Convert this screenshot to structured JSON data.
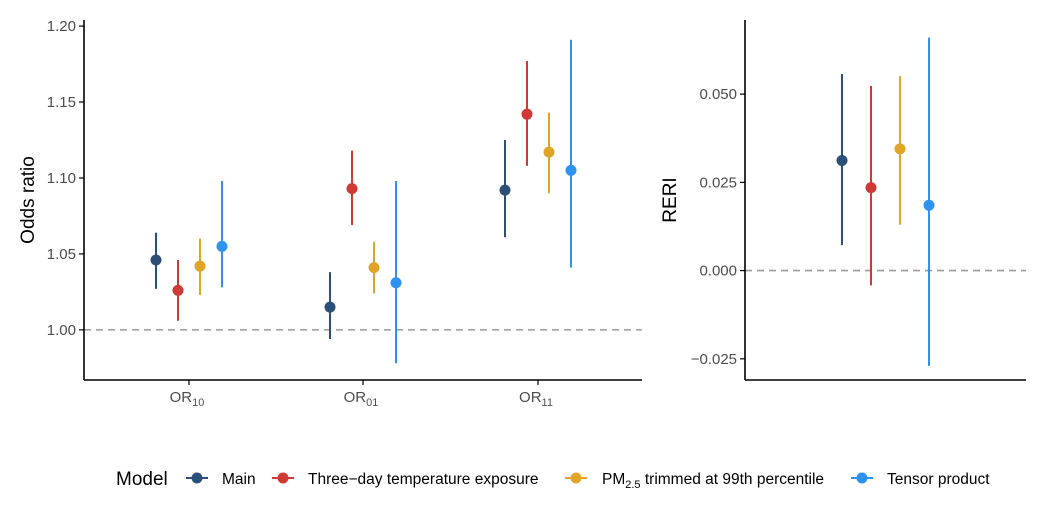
{
  "chart_data": [
    {
      "type": "pointrange",
      "ylabel": "Odds ratio",
      "ylim": [
        0.967,
        1.204
      ],
      "yticks": [
        1.0,
        1.05,
        1.1,
        1.15,
        1.2
      ],
      "ytick_labels": [
        "1.00",
        "1.05",
        "1.10",
        "1.15",
        "1.20"
      ],
      "reference_line": 1.0,
      "categories": [
        {
          "base": "OR",
          "sub": "10"
        },
        {
          "base": "OR",
          "sub": "01"
        },
        {
          "base": "OR",
          "sub": "11"
        }
      ],
      "series": [
        {
          "name": "Main",
          "points": [
            {
              "est": 1.046,
              "lo": 1.027,
              "hi": 1.064
            },
            {
              "est": 1.015,
              "lo": 0.994,
              "hi": 1.038
            },
            {
              "est": 1.092,
              "lo": 1.061,
              "hi": 1.125
            }
          ]
        },
        {
          "name": "Three-day temperature exposure",
          "points": [
            {
              "est": 1.026,
              "lo": 1.006,
              "hi": 1.046
            },
            {
              "est": 1.093,
              "lo": 1.069,
              "hi": 1.118
            },
            {
              "est": 1.142,
              "lo": 1.108,
              "hi": 1.177
            }
          ]
        },
        {
          "name": "PM2.5 trimmed at 99th percentile",
          "points": [
            {
              "est": 1.042,
              "lo": 1.023,
              "hi": 1.06
            },
            {
              "est": 1.041,
              "lo": 1.024,
              "hi": 1.058
            },
            {
              "est": 1.117,
              "lo": 1.09,
              "hi": 1.143
            }
          ]
        },
        {
          "name": "Tensor product",
          "points": [
            {
              "est": 1.055,
              "lo": 1.028,
              "hi": 1.098
            },
            {
              "est": 1.031,
              "lo": 0.978,
              "hi": 1.098
            },
            {
              "est": 1.105,
              "lo": 1.041,
              "hi": 1.191
            }
          ]
        }
      ]
    },
    {
      "type": "pointrange",
      "ylabel": "RERI",
      "ylim": [
        -0.031,
        0.071
      ],
      "yticks": [
        -0.025,
        0.0,
        0.025,
        0.05
      ],
      "ytick_labels": [
        "−0.025",
        "0.000",
        "0.025",
        "0.050"
      ],
      "reference_line": 0.0,
      "series": [
        {
          "name": "Main",
          "est": 0.0312,
          "lo": 0.0072,
          "hi": 0.0557
        },
        {
          "name": "Three-day temperature exposure",
          "est": 0.0235,
          "lo": -0.0042,
          "hi": 0.0523
        },
        {
          "name": "PM2.5 trimmed at 99th percentile",
          "est": 0.0345,
          "lo": 0.013,
          "hi": 0.0551
        },
        {
          "name": "Tensor product",
          "est": 0.0185,
          "lo": -0.027,
          "hi": 0.066
        }
      ]
    }
  ],
  "legend": {
    "title": "Model",
    "items": [
      {
        "key": "main",
        "label": "Main",
        "color": "#2b4f76"
      },
      {
        "key": "three-day",
        "label": "Three−day temperature exposure",
        "color": "#d03a34"
      },
      {
        "key": "pm25",
        "label_base": "PM",
        "label_sub": "2.5",
        "label_rest": " trimmed at 99th percentile",
        "color": "#e0a526"
      },
      {
        "key": "tensor",
        "label": "Tensor product",
        "color": "#2e92f0"
      }
    ]
  }
}
